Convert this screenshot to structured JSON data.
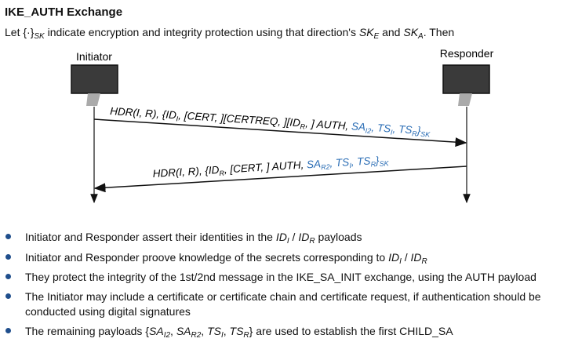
{
  "title": "IKE_AUTH Exchange",
  "intro": {
    "prefix": "Let",
    "braces": "{·}",
    "sub_sk": "SK",
    "middle": "indicate encryption and integrity protection using that direction's",
    "ske": "SK",
    "ske_sub": "E",
    "and": "and",
    "ska": "SK",
    "ska_sub": "A",
    "suffix": ". Then"
  },
  "diagram": {
    "initiator_label": "Initiator",
    "responder_label": "Responder",
    "msg1_black": "HDR(I, R), {ID",
    "msg1_text": "HDR(I, R), {ID_I, [CERT, ][CERTREQ, ][ID_R, ] AUTH, SA_I2, TS_I, TS_R}SK",
    "msg2_text": "HDR(I, R), {ID_R, [CERT, ] AUTH, SA_R2, TS_I, TS_R}SK",
    "accent_color": "#2a6db5"
  },
  "bullets": [
    {
      "pre": "Initiator and Responder assert their identities in the",
      "math": "ID_I / ID_R",
      "post": "payloads"
    },
    {
      "pre": "Initiator and Responder proove knowledge of the secrets corresponding to",
      "math": "ID_I / ID_R",
      "post": ""
    },
    {
      "pre": "They protect the integrity of the 1st/2nd message in the IKE_SA_INIT exchange, using the AUTH payload",
      "math": "",
      "post": ""
    },
    {
      "pre": "The Initiator may include a certificate or certificate chain and certificate request, if authentication should be conducted using digital signatures",
      "math": "",
      "post": ""
    },
    {
      "pre": "The remaining payloads",
      "math": "{SA_I2, SA_R2, TS_I, TS_R}",
      "post": "are used to establish the first CHILD_SA"
    }
  ]
}
